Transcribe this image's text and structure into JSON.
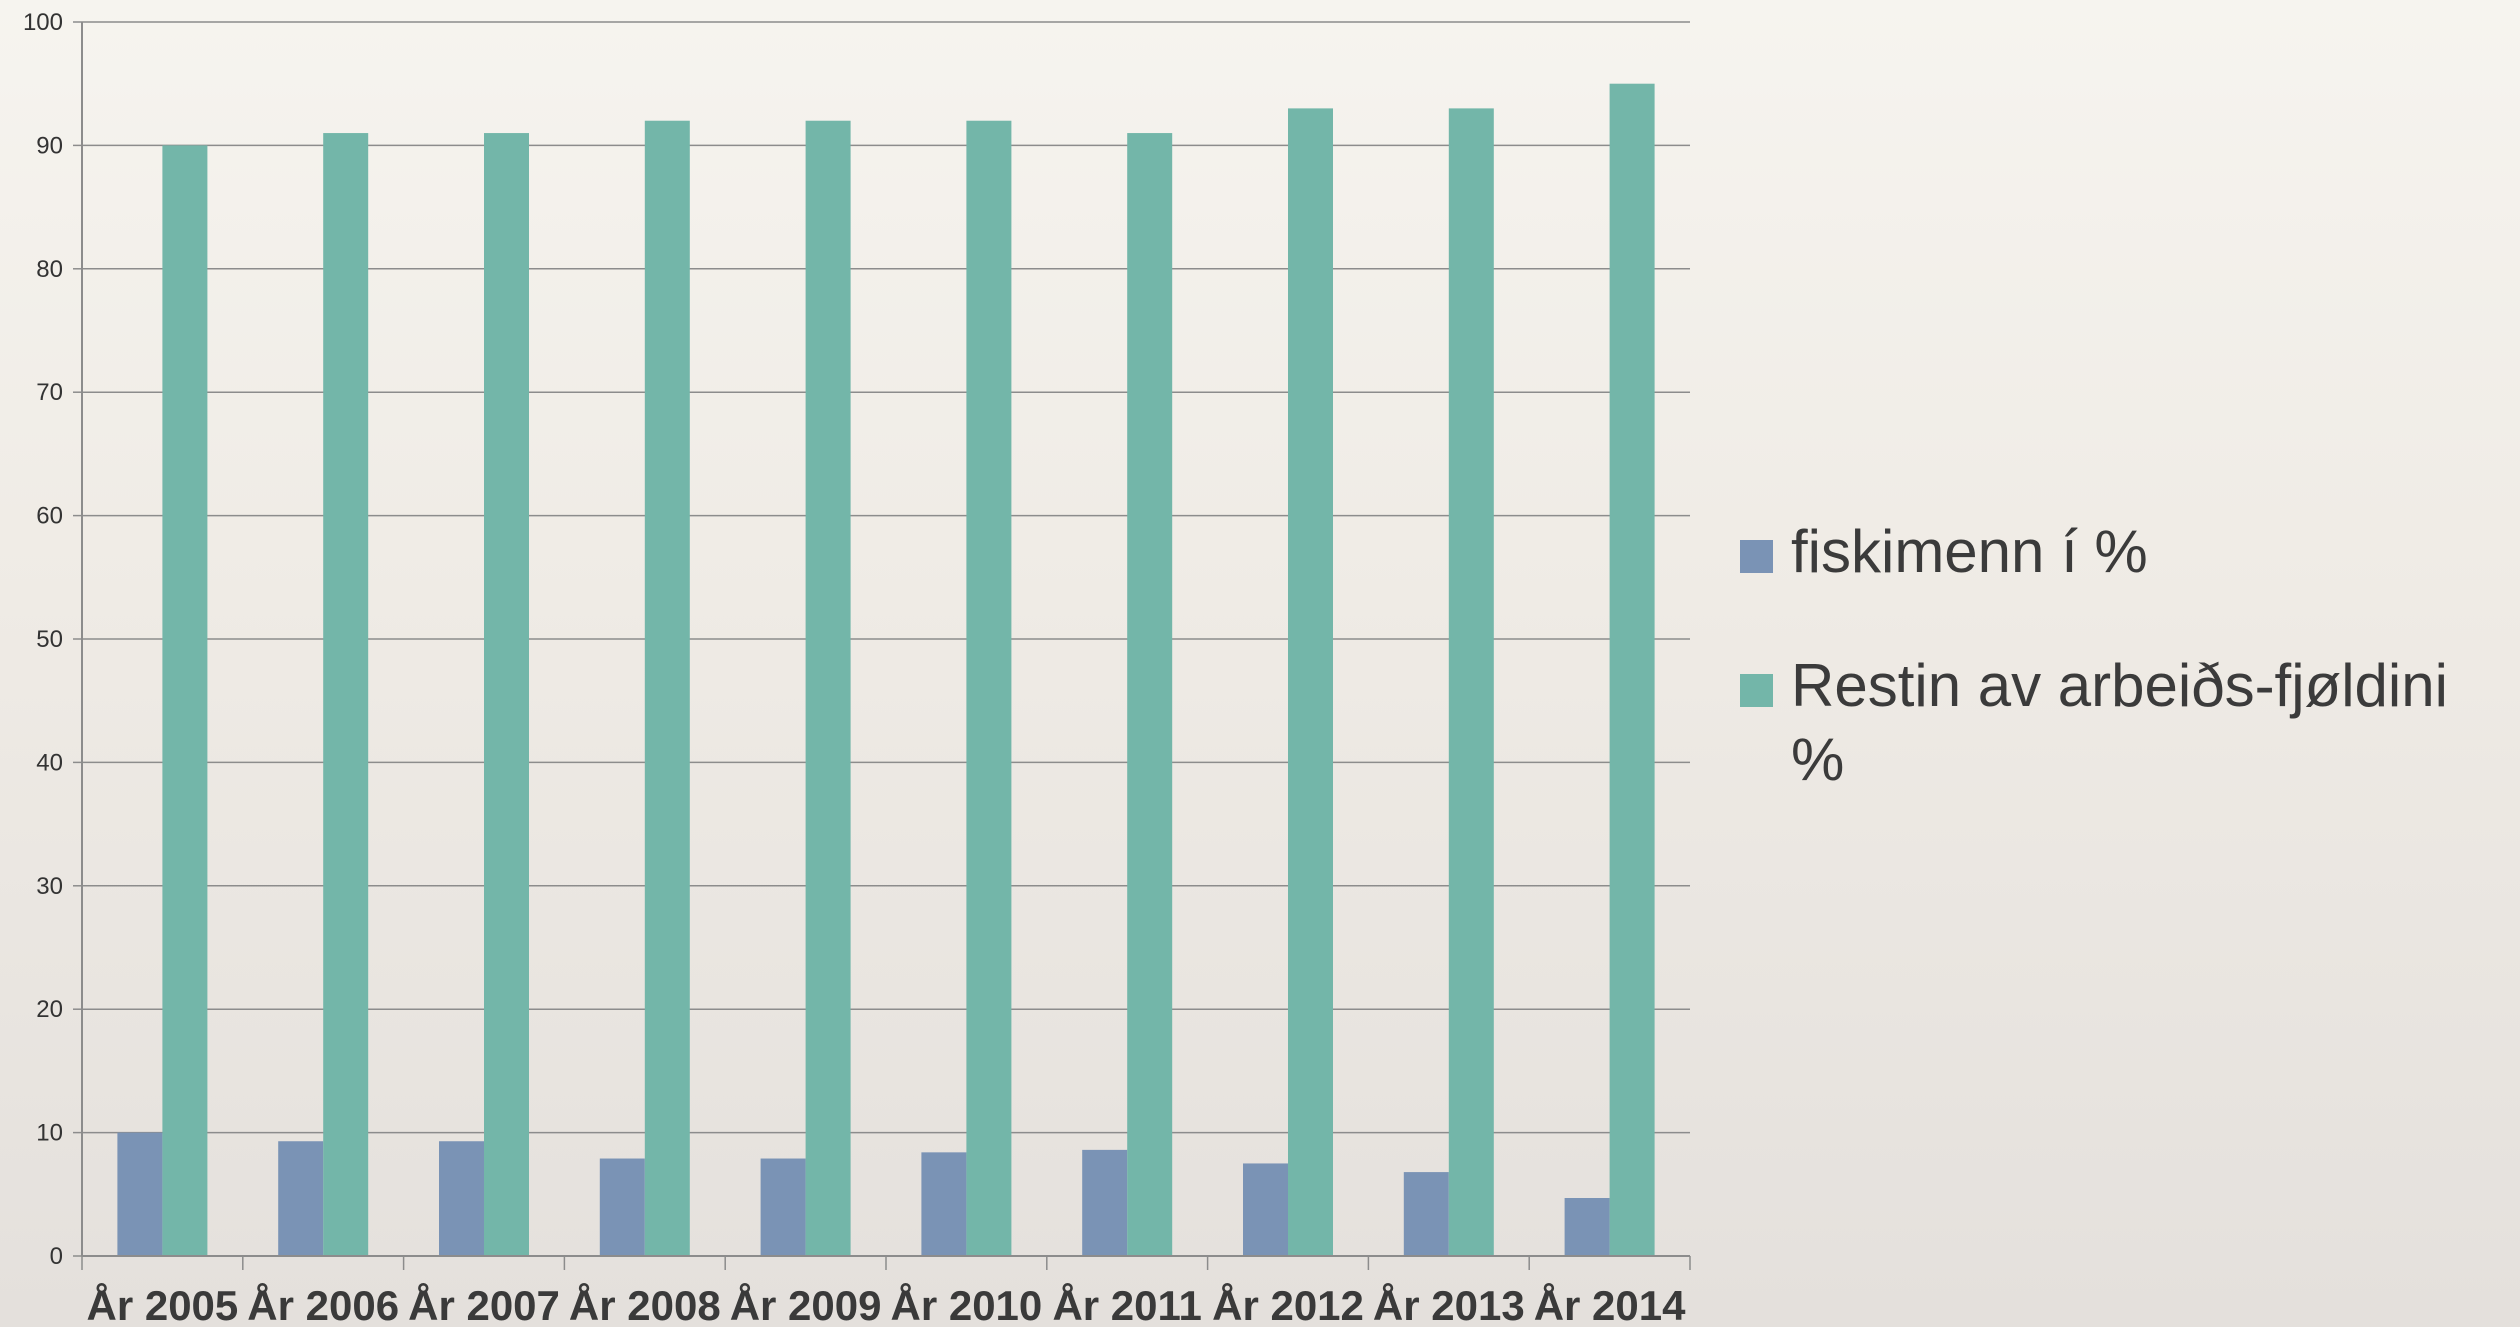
{
  "chart_data": {
    "type": "bar",
    "categories": [
      "År 2005",
      "År 2006",
      "År 2007",
      "År 2008",
      "År 2009",
      "År 2010",
      "År 2011",
      "År 2012",
      "År 2013",
      "År 2014"
    ],
    "series": [
      {
        "name": "fiskimenn í %",
        "color": "#7a93b5",
        "values": [
          10,
          9.3,
          9.3,
          7.9,
          7.9,
          8.4,
          8.6,
          7.5,
          6.8,
          4.7
        ]
      },
      {
        "name": "Restin av arbeiðs-fjøldini %",
        "color": "#73b6a9",
        "values": [
          90,
          91,
          91,
          92,
          92,
          92,
          91,
          93,
          93,
          95
        ]
      }
    ],
    "ylim": [
      0,
      100
    ],
    "yticks": [
      0,
      10,
      20,
      30,
      40,
      50,
      60,
      70,
      80,
      90,
      100
    ],
    "grid": true,
    "legend_position": "right",
    "title": "",
    "xlabel": "",
    "ylabel": ""
  }
}
